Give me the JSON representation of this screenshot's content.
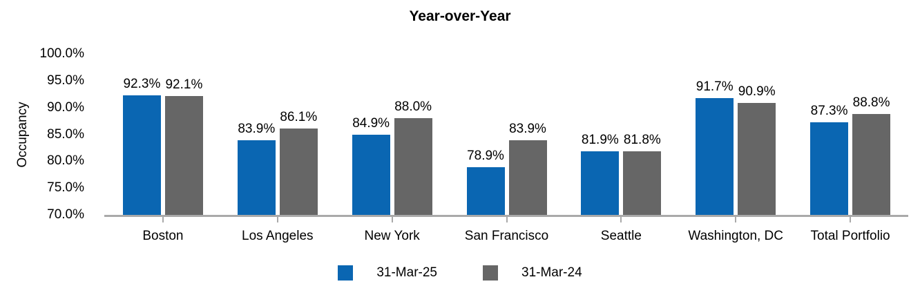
{
  "chart_data": {
    "type": "bar",
    "title": "Year-over-Year",
    "ylabel": "Occupancy",
    "xlabel": "",
    "grid": false,
    "legend_position": "bottom",
    "categories": [
      "Boston",
      "Los Angeles",
      "New York",
      "San Francisco",
      "Seattle",
      "Washington, DC",
      "Total Portfolio"
    ],
    "series": [
      {
        "name": "31-Mar-25",
        "color": "#0a66b2",
        "values": [
          92.3,
          83.9,
          84.9,
          78.9,
          81.9,
          91.7,
          87.3
        ],
        "labels": [
          "92.3%",
          "83.9%",
          "84.9%",
          "78.9%",
          "81.9%",
          "91.7%",
          "87.3%"
        ]
      },
      {
        "name": "31-Mar-24",
        "color": "#666666",
        "values": [
          92.1,
          86.1,
          88.0,
          83.9,
          81.8,
          90.9,
          88.8
        ],
        "labels": [
          "92.1%",
          "86.1%",
          "88.0%",
          "83.9%",
          "81.8%",
          "90.9%",
          "88.8%"
        ]
      }
    ],
    "y_axis": {
      "min": 70,
      "max": 100,
      "ticks": [
        {
          "value": 100,
          "label": "100.0%"
        },
        {
          "value": 95,
          "label": "95.0%"
        },
        {
          "value": 90,
          "label": "90.0%"
        },
        {
          "value": 85,
          "label": "85.0%"
        },
        {
          "value": 80,
          "label": "80.0%"
        },
        {
          "value": 75,
          "label": "75.0%"
        },
        {
          "value": 70,
          "label": "70.0%"
        }
      ]
    },
    "axis_color": "#a9a9a9"
  }
}
